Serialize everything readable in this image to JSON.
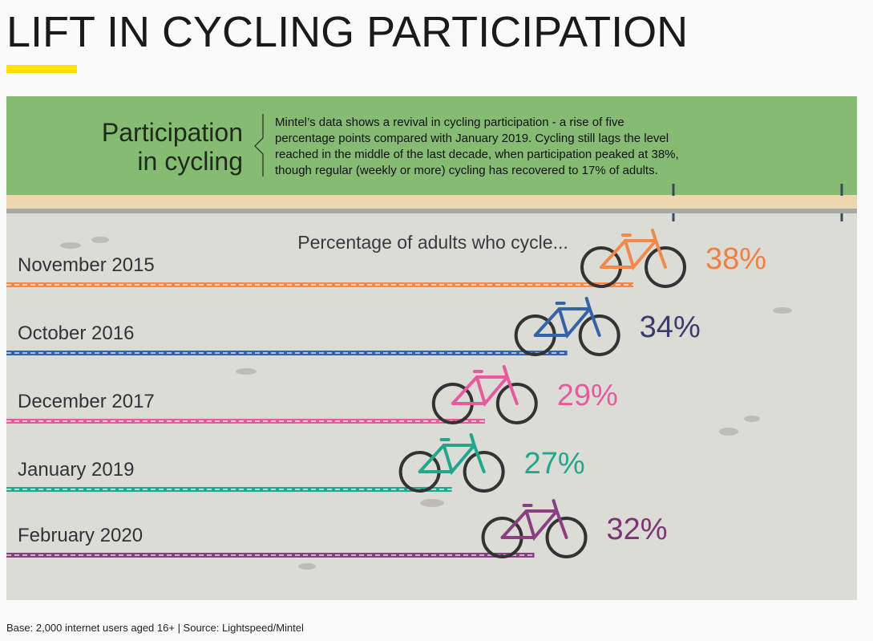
{
  "chart_data": {
    "type": "bar",
    "orientation": "horizontal",
    "title": "LIFT IN CYCLING PARTICIPATION",
    "header_title": [
      "Participation",
      "in cycling"
    ],
    "description": [
      "Mintel’s data shows a revival in cycling participation - a rise of five",
      "percentage points compared with January 2019. Cycling still lags the level",
      "reached in the middle of the last decade, when participation peaked at 38%,",
      "though regular (weekly or more) cycling has recovered to 17% of adults."
    ],
    "subtitle": "Percentage of adults who cycle...",
    "categories": [
      "November 2015",
      "October 2016",
      "December 2017",
      "January 2019",
      "February 2020"
    ],
    "series": [
      {
        "name": "Percentage of adults who cycle",
        "values": [
          38,
          34,
          29,
          27,
          32
        ],
        "value_labels": [
          "38%",
          "34%",
          "29%",
          "27%",
          "32%"
        ],
        "colors": [
          "#f0894a",
          "#3563a8",
          "#e75a9d",
          "#22a68d",
          "#8a3f80"
        ],
        "label_colors": [
          "#ef7f45",
          "#3b3c6b",
          "#e75a9d",
          "#22a68d",
          "#7b3573"
        ]
      }
    ],
    "footnote": "Base: 2,000 internet users aged 16+ | Source: Lightspeed/Mintel"
  }
}
